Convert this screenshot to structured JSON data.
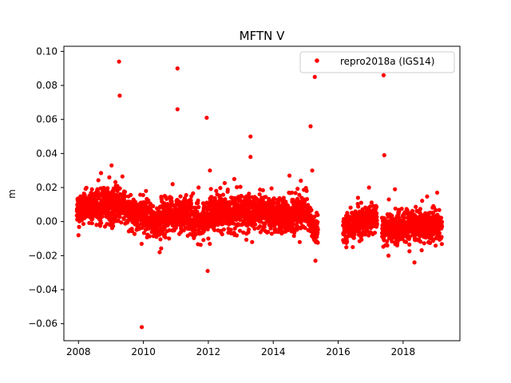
{
  "chart_data": {
    "type": "scatter",
    "title": "MFTN V",
    "xlabel": "",
    "ylabel": "m",
    "xlim": [
      2007.55,
      2019.75
    ],
    "ylim": [
      -0.07,
      0.103
    ],
    "x_ticks": [
      2008,
      2010,
      2012,
      2014,
      2016,
      2018
    ],
    "x_tick_labels": [
      "2008",
      "2010",
      "2012",
      "2014",
      "2016",
      "2018"
    ],
    "y_ticks": [
      -0.06,
      -0.04,
      -0.02,
      0.0,
      0.02,
      0.04,
      0.06,
      0.08,
      0.1
    ],
    "y_tick_labels": [
      "−0.06",
      "−0.04",
      "−0.02",
      "0.00",
      "0.02",
      "0.04",
      "0.06",
      "0.08",
      "0.10"
    ],
    "grid": false,
    "legend_position": "top-right",
    "series": [
      {
        "name": "repro2018a (IGS14)",
        "color": "#ff0000",
        "marker": "circle",
        "segments": [
          {
            "start": 2007.95,
            "end": 2008.5,
            "center": [
              0.008,
              0.009
            ],
            "spread": 0.0055
          },
          {
            "start": 2008.5,
            "end": 2009.45,
            "center": [
              0.009,
              0.01
            ],
            "spread": 0.0065
          },
          {
            "start": 2009.45,
            "end": 2010.0,
            "center": [
              0.006,
              0.004
            ],
            "spread": 0.0055
          },
          {
            "start": 2010.0,
            "end": 2010.55,
            "center": [
              0.002,
              -0.001
            ],
            "spread": 0.0065
          },
          {
            "start": 2010.55,
            "end": 2011.5,
            "center": [
              0.004,
              0.004
            ],
            "spread": 0.0065
          },
          {
            "start": 2011.5,
            "end": 2012.0,
            "center": [
              0.0,
              0.002
            ],
            "spread": 0.006
          },
          {
            "start": 2012.0,
            "end": 2013.6,
            "center": [
              0.006,
              0.005
            ],
            "spread": 0.0065
          },
          {
            "start": 2013.6,
            "end": 2014.5,
            "center": [
              0.004,
              0.003
            ],
            "spread": 0.0065
          },
          {
            "start": 2014.5,
            "end": 2015.05,
            "center": [
              0.004,
              0.006
            ],
            "spread": 0.0065
          },
          {
            "start": 2015.05,
            "end": 2015.38,
            "center": [
              0.004,
              -0.008
            ],
            "spread": 0.006
          },
          {
            "start": 2016.15,
            "end": 2016.9,
            "center": [
              -0.004,
              0.001
            ],
            "spread": 0.005
          },
          {
            "start": 2016.9,
            "end": 2017.2,
            "center": [
              0.001,
              0.002
            ],
            "spread": 0.0055
          },
          {
            "start": 2017.35,
            "end": 2018.25,
            "center": [
              -0.004,
              -0.003
            ],
            "spread": 0.006
          },
          {
            "start": 2018.25,
            "end": 2018.75,
            "center": [
              -0.002,
              -0.003
            ],
            "spread": 0.006
          },
          {
            "start": 2018.75,
            "end": 2019.2,
            "center": [
              -0.003,
              -0.003
            ],
            "spread": 0.006
          }
        ],
        "outliers": [
          {
            "x": 2009.25,
            "y": 0.094
          },
          {
            "x": 2009.27,
            "y": 0.074
          },
          {
            "x": 2011.05,
            "y": 0.09
          },
          {
            "x": 2011.05,
            "y": 0.066
          },
          {
            "x": 2011.95,
            "y": 0.061
          },
          {
            "x": 2011.98,
            "y": -0.029
          },
          {
            "x": 2009.95,
            "y": -0.062
          },
          {
            "x": 2013.3,
            "y": 0.05
          },
          {
            "x": 2013.3,
            "y": 0.038
          },
          {
            "x": 2015.15,
            "y": 0.056
          },
          {
            "x": 2015.28,
            "y": 0.085
          },
          {
            "x": 2014.5,
            "y": 0.027
          },
          {
            "x": 2014.85,
            "y": 0.024
          },
          {
            "x": 2015.2,
            "y": 0.03
          },
          {
            "x": 2017.4,
            "y": 0.086
          },
          {
            "x": 2017.42,
            "y": 0.039
          },
          {
            "x": 2009.02,
            "y": 0.033
          },
          {
            "x": 2008.95,
            "y": 0.026
          },
          {
            "x": 2012.05,
            "y": 0.03
          },
          {
            "x": 2012.8,
            "y": 0.025
          },
          {
            "x": 2010.5,
            "y": -0.018
          },
          {
            "x": 2015.3,
            "y": -0.023
          },
          {
            "x": 2017.55,
            "y": -0.02
          },
          {
            "x": 2018.35,
            "y": -0.024
          },
          {
            "x": 2008.0,
            "y": -0.008
          },
          {
            "x": 2012.0,
            "y": -0.01
          },
          {
            "x": 2013.35,
            "y": -0.012
          },
          {
            "x": 2016.45,
            "y": -0.015
          },
          {
            "x": 2016.95,
            "y": 0.02
          },
          {
            "x": 2017.75,
            "y": 0.019
          },
          {
            "x": 2019.05,
            "y": 0.017
          },
          {
            "x": 2010.08,
            "y": 0.018
          },
          {
            "x": 2010.9,
            "y": 0.022
          },
          {
            "x": 2011.7,
            "y": 0.02
          }
        ]
      }
    ]
  }
}
